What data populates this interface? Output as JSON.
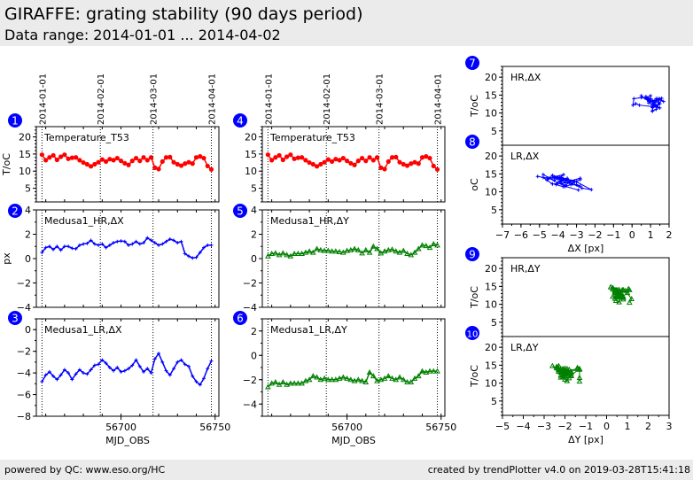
{
  "header": {
    "title": "GIRAFFE: grating stability (90 days period)",
    "subtitle": "Data range: 2014-01-01 ... 2014-04-02"
  },
  "footer": {
    "left": "powered by QC: www.eso.org/HC",
    "right": "created by trendPlotter v4.0 on 2019-03-28T15:41:18"
  },
  "colors": {
    "temperature": "#ff0000",
    "dx": "#0000ff",
    "dy": "#008000",
    "badge": "#0000ff"
  },
  "chart_data": [
    {
      "id": 1,
      "type": "line",
      "title": "Temperature_T53",
      "ylabel": "T/oC",
      "xlabel": "",
      "ylim": [
        1,
        23
      ],
      "yticks": [
        5,
        10,
        15,
        20
      ],
      "xlim": [
        56655,
        56752
      ],
      "date_lines": [
        {
          "mjd": 56658,
          "label": "2014-01-01"
        },
        {
          "mjd": 56689,
          "label": "2014-02-01"
        },
        {
          "mjd": 56717,
          "label": "2014-03-01"
        },
        {
          "mjd": 56748,
          "label": "2014-04-01"
        }
      ],
      "color": "#ff0000",
      "marker": "circle",
      "x": [
        56658,
        56660,
        56662,
        56664,
        56666,
        56668,
        56670,
        56672,
        56674,
        56676,
        56678,
        56680,
        56682,
        56684,
        56686,
        56688,
        56690,
        56692,
        56694,
        56696,
        56698,
        56700,
        56702,
        56704,
        56706,
        56708,
        56710,
        56712,
        56714,
        56716,
        56718,
        56720,
        56722,
        56724,
        56726,
        56728,
        56730,
        56732,
        56734,
        56736,
        56738,
        56740,
        56742,
        56744,
        56746,
        56748
      ],
      "y": [
        14.8,
        13.2,
        14.0,
        14.6,
        13.3,
        14.2,
        14.8,
        13.6,
        13.9,
        14.0,
        13.2,
        12.5,
        12.0,
        11.4,
        12.0,
        12.6,
        13.4,
        12.8,
        13.5,
        13.2,
        13.8,
        13.0,
        12.3,
        11.8,
        13.0,
        13.8,
        13.0,
        14.0,
        13.2,
        14.0,
        11.0,
        10.6,
        12.8,
        14.0,
        14.1,
        12.6,
        12.0,
        11.6,
        12.2,
        12.6,
        12.2,
        14.0,
        14.3,
        13.8,
        11.5,
        10.5
      ]
    },
    {
      "id": 2,
      "type": "line",
      "title": "Medusa1_HR,ΔX",
      "ylabel": "px",
      "xlabel": "",
      "ylim": [
        -4,
        4
      ],
      "yticks": [
        -4,
        -2,
        0,
        2,
        4
      ],
      "xlim": [
        56655,
        56752
      ],
      "color": "#0000ff",
      "marker": "plus",
      "x": [
        56658,
        56660,
        56662,
        56664,
        56666,
        56668,
        56670,
        56672,
        56674,
        56676,
        56678,
        56680,
        56682,
        56684,
        56686,
        56688,
        56690,
        56692,
        56694,
        56696,
        56698,
        56700,
        56702,
        56704,
        56706,
        56708,
        56710,
        56712,
        56714,
        56716,
        56718,
        56720,
        56722,
        56724,
        56726,
        56728,
        56730,
        56732,
        56734,
        56736,
        56738,
        56740,
        56742,
        56744,
        56746,
        56748
      ],
      "y": [
        0.5,
        0.9,
        1.0,
        0.75,
        1.0,
        0.7,
        1.0,
        1.0,
        0.85,
        0.8,
        1.1,
        1.2,
        1.25,
        1.5,
        1.2,
        1.1,
        1.2,
        0.9,
        1.1,
        1.3,
        1.4,
        1.45,
        1.4,
        1.1,
        1.2,
        1.4,
        1.2,
        1.3,
        1.7,
        1.5,
        1.3,
        1.1,
        1.2,
        1.4,
        1.6,
        1.5,
        1.3,
        1.4,
        0.4,
        0.2,
        0.05,
        0.1,
        0.5,
        0.9,
        1.1,
        1.1
      ]
    },
    {
      "id": 3,
      "type": "line",
      "title": "Medusa1_LR,ΔX",
      "ylabel": "",
      "xlabel": "MJD_OBS",
      "ylim": [
        -8,
        1
      ],
      "yticks": [
        -8,
        -6,
        -4,
        -2,
        0
      ],
      "xlim": [
        56655,
        56752
      ],
      "xticks": [
        56700,
        56750
      ],
      "color": "#0000ff",
      "marker": "plus",
      "x": [
        56658,
        56660,
        56662,
        56664,
        56666,
        56668,
        56670,
        56672,
        56674,
        56676,
        56678,
        56680,
        56682,
        56684,
        56686,
        56688,
        56690,
        56692,
        56694,
        56696,
        56698,
        56700,
        56702,
        56704,
        56706,
        56708,
        56710,
        56712,
        56714,
        56716,
        56718,
        56720,
        56722,
        56724,
        56726,
        56728,
        56730,
        56732,
        56734,
        56736,
        56738,
        56740,
        56742,
        56744,
        56746,
        56748
      ],
      "y": [
        -4.8,
        -4.2,
        -3.9,
        -4.3,
        -4.6,
        -4.2,
        -3.7,
        -4.0,
        -4.6,
        -4.1,
        -3.7,
        -4.0,
        -4.1,
        -3.7,
        -3.3,
        -3.2,
        -2.8,
        -3.1,
        -3.5,
        -3.8,
        -3.5,
        -3.9,
        -3.8,
        -3.6,
        -3.3,
        -2.8,
        -3.4,
        -3.9,
        -3.6,
        -4.0,
        -2.7,
        -2.2,
        -3.0,
        -3.8,
        -4.2,
        -3.6,
        -3.0,
        -2.8,
        -3.2,
        -3.4,
        -4.3,
        -4.8,
        -5.1,
        -4.5,
        -3.6,
        -2.9
      ]
    },
    {
      "id": 4,
      "type": "line",
      "title": "Temperature_T53",
      "ylabel": "",
      "xlabel": "",
      "ylim": [
        1,
        23
      ],
      "yticks": [
        5,
        10,
        15,
        20
      ],
      "xlim": [
        56655,
        56752
      ],
      "date_lines": [
        {
          "mjd": 56658,
          "label": "2014-01-01"
        },
        {
          "mjd": 56689,
          "label": "2014-02-01"
        },
        {
          "mjd": 56717,
          "label": "2014-03-01"
        },
        {
          "mjd": 56748,
          "label": "2014-04-01"
        }
      ],
      "color": "#ff0000",
      "marker": "circle",
      "same_as": 1
    },
    {
      "id": 5,
      "type": "line",
      "title": "Medusa1_HR,ΔY",
      "ylabel": "",
      "xlabel": "",
      "ylim": [
        -4,
        4
      ],
      "yticks": [
        -4,
        -2,
        0,
        2,
        4
      ],
      "xlim": [
        56655,
        56752
      ],
      "color": "#008000",
      "marker": "triangle",
      "x": [
        56658,
        56660,
        56662,
        56664,
        56666,
        56668,
        56670,
        56672,
        56674,
        56676,
        56678,
        56680,
        56682,
        56684,
        56686,
        56688,
        56690,
        56692,
        56694,
        56696,
        56698,
        56700,
        56702,
        56704,
        56706,
        56708,
        56710,
        56712,
        56714,
        56716,
        56718,
        56720,
        56722,
        56724,
        56726,
        56728,
        56730,
        56732,
        56734,
        56736,
        56738,
        56740,
        56742,
        56744,
        56746,
        56748
      ],
      "y": [
        0.2,
        0.4,
        0.45,
        0.3,
        0.45,
        0.3,
        0.2,
        0.4,
        0.4,
        0.4,
        0.5,
        0.6,
        0.5,
        0.8,
        0.7,
        0.65,
        0.65,
        0.6,
        0.6,
        0.55,
        0.5,
        0.65,
        0.7,
        0.8,
        0.7,
        0.45,
        0.7,
        0.5,
        1.0,
        0.8,
        0.45,
        0.6,
        0.7,
        0.75,
        0.6,
        0.5,
        0.65,
        0.4,
        0.3,
        0.5,
        0.8,
        1.1,
        1.05,
        0.9,
        1.2,
        1.1
      ]
    },
    {
      "id": 6,
      "type": "line",
      "title": "Medusa1_LR,ΔY",
      "ylabel": "",
      "xlabel": "MJD_OBS",
      "ylim": [
        -5,
        3
      ],
      "yticks": [
        -4,
        -2,
        0,
        2
      ],
      "xlim": [
        56655,
        56752
      ],
      "xticks": [
        56700,
        56750
      ],
      "color": "#008000",
      "marker": "triangle",
      "x": [
        56658,
        56660,
        56662,
        56664,
        56666,
        56668,
        56670,
        56672,
        56674,
        56676,
        56678,
        56680,
        56682,
        56684,
        56686,
        56688,
        56690,
        56692,
        56694,
        56696,
        56698,
        56700,
        56702,
        56704,
        56706,
        56708,
        56710,
        56712,
        56714,
        56716,
        56718,
        56720,
        56722,
        56724,
        56726,
        56728,
        56730,
        56732,
        56734,
        56736,
        56738,
        56740,
        56742,
        56744,
        56746,
        56748
      ],
      "y": [
        -2.6,
        -2.3,
        -2.2,
        -2.4,
        -2.2,
        -2.4,
        -2.3,
        -2.3,
        -2.3,
        -2.3,
        -2.1,
        -2.0,
        -1.7,
        -1.8,
        -2.0,
        -1.9,
        -2.0,
        -2.0,
        -2.0,
        -1.9,
        -1.8,
        -1.9,
        -2.0,
        -2.1,
        -2.0,
        -2.1,
        -2.2,
        -1.4,
        -1.7,
        -2.1,
        -2.0,
        -1.9,
        -1.7,
        -1.9,
        -2.0,
        -1.8,
        -2.0,
        -2.2,
        -2.2,
        -1.9,
        -1.7,
        -1.3,
        -1.4,
        -1.3,
        -1.3,
        -1.3
      ]
    },
    {
      "id": 7,
      "type": "scatter",
      "title": "HR,ΔX",
      "ylabel": "T/oC",
      "xlabel": "",
      "xlim": [
        -7,
        2
      ],
      "ylim": [
        1,
        23
      ],
      "yticks": [
        5,
        10,
        15,
        20
      ],
      "color": "#0000ff",
      "marker": "plus",
      "x_from": 2,
      "y_from": 1
    },
    {
      "id": 8,
      "type": "scatter",
      "title": "LR,ΔX",
      "ylabel": "oC",
      "xlabel": "ΔX [px]",
      "xlim": [
        -7,
        2
      ],
      "ylim": [
        1,
        23
      ],
      "yticks": [
        5,
        10,
        15,
        20
      ],
      "xticks": [
        -7,
        -6,
        -5,
        -4,
        -3,
        -2,
        -1,
        0,
        1,
        2
      ],
      "color": "#0000ff",
      "marker": "plus",
      "x_from": 3,
      "y_from": 1
    },
    {
      "id": 9,
      "type": "scatter",
      "title": "HR,ΔY",
      "ylabel": "T/oC",
      "xlabel": "",
      "xlim": [
        -5,
        3
      ],
      "ylim": [
        1,
        23
      ],
      "yticks": [
        5,
        10,
        15,
        20
      ],
      "color": "#008000",
      "marker": "triangle",
      "x_from": 5,
      "y_from": 1
    },
    {
      "id": 10,
      "type": "scatter",
      "title": "LR,ΔY",
      "ylabel": "T/oC",
      "xlabel": "ΔY [px]",
      "xlim": [
        -5,
        3
      ],
      "ylim": [
        1,
        23
      ],
      "yticks": [
        5,
        10,
        15,
        20
      ],
      "xticks": [
        -5,
        -4,
        -3,
        -2,
        -1,
        0,
        1,
        2,
        3
      ],
      "color": "#008000",
      "marker": "triangle",
      "x_from": 6,
      "y_from": 1
    }
  ]
}
